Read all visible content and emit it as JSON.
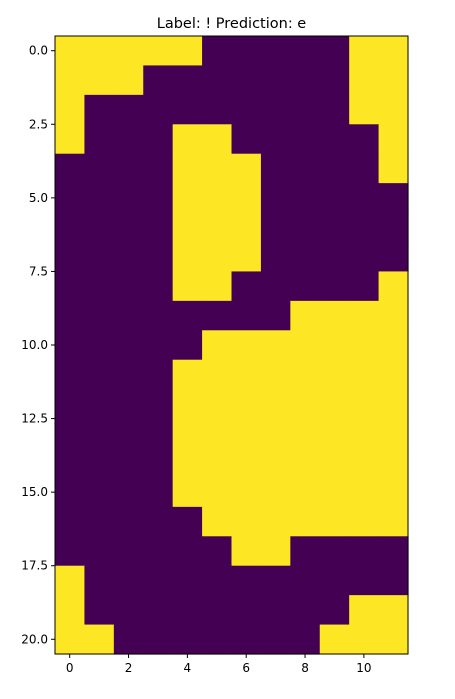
{
  "chart_data": {
    "type": "heatmap",
    "title": "Label: ! Prediction: e",
    "xlabel": "",
    "ylabel": "",
    "xlim": [
      -0.5,
      11.5
    ],
    "ylim": [
      20.5,
      -0.5
    ],
    "x_ticks": [
      0,
      2,
      4,
      6,
      8,
      10
    ],
    "x_tick_labels": [
      "0",
      "2",
      "4",
      "6",
      "8",
      "10"
    ],
    "y_ticks": [
      0.0,
      2.5,
      5.0,
      7.5,
      10.0,
      12.5,
      15.0,
      17.5,
      20.0
    ],
    "y_tick_labels": [
      "0.0",
      "2.5",
      "5.0",
      "7.5",
      "10.0",
      "12.5",
      "15.0",
      "17.5",
      "20.0"
    ],
    "grid": false,
    "colormap": {
      "0": "#440154",
      "1": "#fde725"
    },
    "values": [
      [
        1,
        1,
        1,
        1,
        1,
        0,
        0,
        0,
        0,
        0,
        1,
        1
      ],
      [
        1,
        1,
        1,
        0,
        0,
        0,
        0,
        0,
        0,
        0,
        1,
        1
      ],
      [
        1,
        0,
        0,
        0,
        0,
        0,
        0,
        0,
        0,
        0,
        1,
        1
      ],
      [
        1,
        0,
        0,
        0,
        1,
        1,
        0,
        0,
        0,
        0,
        0,
        1
      ],
      [
        0,
        0,
        0,
        0,
        1,
        1,
        1,
        0,
        0,
        0,
        0,
        1
      ],
      [
        0,
        0,
        0,
        0,
        1,
        1,
        1,
        0,
        0,
        0,
        0,
        0
      ],
      [
        0,
        0,
        0,
        0,
        1,
        1,
        1,
        0,
        0,
        0,
        0,
        0
      ],
      [
        0,
        0,
        0,
        0,
        1,
        1,
        1,
        0,
        0,
        0,
        0,
        0
      ],
      [
        0,
        0,
        0,
        0,
        1,
        1,
        0,
        0,
        0,
        0,
        0,
        1
      ],
      [
        0,
        0,
        0,
        0,
        0,
        0,
        0,
        0,
        1,
        1,
        1,
        1
      ],
      [
        0,
        0,
        0,
        0,
        0,
        1,
        1,
        1,
        1,
        1,
        1,
        1
      ],
      [
        0,
        0,
        0,
        0,
        1,
        1,
        1,
        1,
        1,
        1,
        1,
        1
      ],
      [
        0,
        0,
        0,
        0,
        1,
        1,
        1,
        1,
        1,
        1,
        1,
        1
      ],
      [
        0,
        0,
        0,
        0,
        1,
        1,
        1,
        1,
        1,
        1,
        1,
        1
      ],
      [
        0,
        0,
        0,
        0,
        1,
        1,
        1,
        1,
        1,
        1,
        1,
        1
      ],
      [
        0,
        0,
        0,
        0,
        1,
        1,
        1,
        1,
        1,
        1,
        1,
        1
      ],
      [
        0,
        0,
        0,
        0,
        0,
        1,
        1,
        1,
        1,
        1,
        1,
        1
      ],
      [
        0,
        0,
        0,
        0,
        0,
        0,
        1,
        1,
        0,
        0,
        0,
        0
      ],
      [
        1,
        0,
        0,
        0,
        0,
        0,
        0,
        0,
        0,
        0,
        0,
        0
      ],
      [
        1,
        0,
        0,
        0,
        0,
        0,
        0,
        0,
        0,
        0,
        1,
        1
      ],
      [
        1,
        1,
        0,
        0,
        0,
        0,
        0,
        0,
        0,
        1,
        1,
        1
      ]
    ]
  }
}
